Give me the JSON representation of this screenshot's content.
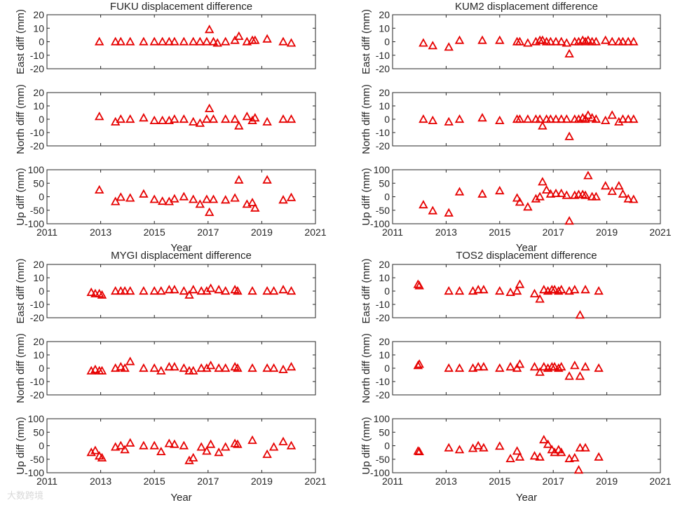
{
  "style": {
    "marker_color": "#e60000",
    "axis_color": "#262626",
    "text_color": "#262626"
  },
  "watermark": "大数跨境",
  "chart_data": [
    {
      "type": "scatter",
      "station": "FUKU",
      "title": "FUKU displacement difference",
      "xlabel": "Year",
      "xlim": [
        2011,
        2021
      ],
      "xticks": [
        2011,
        2013,
        2015,
        2017,
        2019,
        2021
      ],
      "panels": [
        {
          "ylabel": "East diff (mm)",
          "ylim": [
            -20,
            20
          ],
          "yticks": [
            -20,
            -10,
            0,
            10,
            20
          ],
          "x": [
            2012.95,
            2013.55,
            2013.75,
            2014.1,
            2014.6,
            2015.0,
            2015.3,
            2015.55,
            2015.75,
            2016.1,
            2016.45,
            2016.7,
            2016.95,
            2017.05,
            2017.2,
            2017.35,
            2017.65,
            2018.0,
            2018.15,
            2018.45,
            2018.65,
            2018.75,
            2019.2,
            2019.8,
            2020.1
          ],
          "y": [
            0,
            0,
            0,
            0,
            0,
            0,
            0,
            0,
            0,
            0,
            0,
            0,
            0,
            9,
            0,
            -1,
            0,
            1,
            4,
            0,
            1,
            1,
            2,
            0,
            -1
          ]
        },
        {
          "ylabel": "North diff (mm)",
          "ylim": [
            -20,
            20
          ],
          "yticks": [
            -20,
            -10,
            0,
            10,
            20
          ],
          "x": [
            2012.95,
            2013.55,
            2013.75,
            2014.1,
            2014.6,
            2015.0,
            2015.3,
            2015.55,
            2015.75,
            2016.1,
            2016.45,
            2016.7,
            2016.95,
            2017.05,
            2017.2,
            2017.65,
            2018.0,
            2018.15,
            2018.45,
            2018.65,
            2018.75,
            2019.2,
            2019.8,
            2020.1
          ],
          "y": [
            2,
            -2,
            0,
            0,
            1,
            -1,
            -1,
            -1,
            0,
            0,
            -2,
            -3,
            0,
            8,
            0,
            0,
            0,
            -5,
            2,
            -1,
            1,
            -2,
            0,
            0
          ]
        },
        {
          "ylabel": "Up diff (mm)",
          "ylim": [
            -100,
            100
          ],
          "yticks": [
            -100,
            -50,
            0,
            50,
            100
          ],
          "x": [
            2012.95,
            2013.55,
            2013.75,
            2014.1,
            2014.6,
            2015.0,
            2015.3,
            2015.55,
            2015.75,
            2016.1,
            2016.45,
            2016.7,
            2016.95,
            2017.05,
            2017.2,
            2017.65,
            2018.0,
            2018.15,
            2018.45,
            2018.65,
            2018.75,
            2019.2,
            2019.8,
            2020.1
          ],
          "y": [
            25,
            -18,
            -2,
            -5,
            10,
            -10,
            -17,
            -18,
            -8,
            0,
            -10,
            -28,
            -10,
            -58,
            -10,
            -12,
            -5,
            62,
            -28,
            -22,
            -42,
            62,
            -12,
            -3
          ]
        }
      ]
    },
    {
      "type": "scatter",
      "station": "KUM2",
      "title": "KUM2 displacement difference",
      "xlabel": "Year",
      "xlim": [
        2011,
        2021
      ],
      "xticks": [
        2011,
        2013,
        2015,
        2017,
        2019,
        2021
      ],
      "panels": [
        {
          "ylabel": "East diff (mm)",
          "ylim": [
            -20,
            20
          ],
          "yticks": [
            -20,
            -10,
            0,
            10,
            20
          ],
          "x": [
            2012.15,
            2012.5,
            2013.1,
            2013.5,
            2014.35,
            2015.0,
            2015.65,
            2015.75,
            2016.05,
            2016.35,
            2016.5,
            2016.6,
            2016.75,
            2016.9,
            2017.1,
            2017.3,
            2017.5,
            2017.6,
            2017.8,
            2017.95,
            2018.1,
            2018.2,
            2018.3,
            2018.45,
            2018.6,
            2018.95,
            2019.2,
            2019.45,
            2019.6,
            2019.8,
            2020.0
          ],
          "y": [
            -1,
            -3,
            -4,
            1,
            1,
            1,
            0,
            0,
            -1,
            0,
            1,
            1,
            0,
            0,
            0,
            0,
            -1,
            -9,
            0,
            0,
            1,
            0,
            1,
            0,
            0,
            1,
            0,
            0,
            0,
            0,
            0
          ]
        },
        {
          "ylabel": "North diff (mm)",
          "ylim": [
            -20,
            20
          ],
          "yticks": [
            -20,
            -10,
            0,
            10,
            20
          ],
          "x": [
            2012.15,
            2012.5,
            2013.1,
            2013.5,
            2014.35,
            2015.0,
            2015.65,
            2015.75,
            2016.05,
            2016.35,
            2016.5,
            2016.6,
            2016.75,
            2016.9,
            2017.1,
            2017.3,
            2017.5,
            2017.6,
            2017.8,
            2017.95,
            2018.1,
            2018.2,
            2018.3,
            2018.45,
            2018.6,
            2018.95,
            2019.2,
            2019.45,
            2019.6,
            2019.8,
            2020.0
          ],
          "y": [
            0,
            -1,
            -2,
            0,
            1,
            -1,
            0,
            0,
            0,
            0,
            0,
            -5,
            0,
            0,
            0,
            0,
            0,
            -13,
            0,
            0,
            1,
            0,
            3,
            1,
            0,
            -1,
            3,
            -2,
            0,
            0,
            0
          ]
        },
        {
          "ylabel": "Up diff (mm)",
          "ylim": [
            -100,
            100
          ],
          "yticks": [
            -100,
            -50,
            0,
            50,
            100
          ],
          "x": [
            2012.15,
            2012.5,
            2013.1,
            2013.5,
            2014.35,
            2015.0,
            2015.65,
            2015.75,
            2016.05,
            2016.35,
            2016.5,
            2016.6,
            2016.75,
            2016.9,
            2017.1,
            2017.3,
            2017.5,
            2017.6,
            2017.8,
            2017.95,
            2018.1,
            2018.2,
            2018.3,
            2018.45,
            2018.6,
            2018.95,
            2019.2,
            2019.45,
            2019.6,
            2019.8,
            2020.0
          ],
          "y": [
            -30,
            -52,
            -60,
            18,
            10,
            22,
            -5,
            -20,
            -38,
            -8,
            0,
            55,
            25,
            10,
            12,
            12,
            5,
            -90,
            5,
            8,
            8,
            5,
            78,
            0,
            0,
            40,
            20,
            40,
            10,
            -8,
            -10
          ]
        }
      ]
    },
    {
      "type": "scatter",
      "station": "MYGI",
      "title": "MYGI displacement difference",
      "xlabel": "Year",
      "xlim": [
        2011,
        2021
      ],
      "xticks": [
        2011,
        2013,
        2015,
        2017,
        2019,
        2021
      ],
      "panels": [
        {
          "ylabel": "East diff (mm)",
          "ylim": [
            -20,
            20
          ],
          "yticks": [
            -20,
            -10,
            0,
            10,
            20
          ],
          "x": [
            2012.65,
            2012.8,
            2012.95,
            2013.05,
            2013.55,
            2013.75,
            2013.9,
            2014.1,
            2014.6,
            2015.0,
            2015.25,
            2015.55,
            2015.75,
            2016.1,
            2016.3,
            2016.45,
            2016.75,
            2016.95,
            2017.1,
            2017.4,
            2017.65,
            2018.0,
            2018.1,
            2018.65,
            2019.2,
            2019.45,
            2019.8,
            2020.1
          ],
          "y": [
            -1,
            -2,
            -2,
            -3,
            0,
            0,
            0,
            0,
            0,
            0,
            0,
            1,
            1,
            0,
            -3,
            1,
            0,
            0,
            2,
            1,
            0,
            1,
            0,
            0,
            0,
            0,
            1,
            0
          ]
        },
        {
          "ylabel": "North diff (mm)",
          "ylim": [
            -20,
            20
          ],
          "yticks": [
            -20,
            -10,
            0,
            10,
            20
          ],
          "x": [
            2012.65,
            2012.8,
            2012.95,
            2013.05,
            2013.55,
            2013.75,
            2013.9,
            2014.1,
            2014.6,
            2015.0,
            2015.25,
            2015.55,
            2015.75,
            2016.1,
            2016.3,
            2016.45,
            2016.75,
            2016.95,
            2017.1,
            2017.4,
            2017.65,
            2018.0,
            2018.1,
            2018.65,
            2019.2,
            2019.45,
            2019.8,
            2020.1
          ],
          "y": [
            -2,
            -1,
            -2,
            -2,
            0,
            1,
            0,
            5,
            0,
            0,
            -2,
            1,
            1,
            0,
            -2,
            -2,
            0,
            0,
            2,
            0,
            0,
            1,
            0,
            0,
            0,
            0,
            -1,
            1
          ]
        },
        {
          "ylabel": "Up diff (mm)",
          "ylim": [
            -100,
            100
          ],
          "yticks": [
            -100,
            -50,
            0,
            50,
            100
          ],
          "x": [
            2012.65,
            2012.8,
            2012.95,
            2013.05,
            2013.55,
            2013.75,
            2013.9,
            2014.1,
            2014.6,
            2015.0,
            2015.25,
            2015.55,
            2015.75,
            2016.1,
            2016.3,
            2016.45,
            2016.75,
            2016.95,
            2017.1,
            2017.4,
            2017.65,
            2018.0,
            2018.1,
            2018.65,
            2019.2,
            2019.45,
            2019.8,
            2020.1
          ],
          "y": [
            -25,
            -18,
            -38,
            -45,
            -5,
            0,
            -15,
            10,
            0,
            0,
            -22,
            8,
            5,
            0,
            -55,
            -45,
            -5,
            -20,
            5,
            -25,
            -5,
            8,
            5,
            20,
            -32,
            -5,
            15,
            0
          ]
        }
      ]
    },
    {
      "type": "scatter",
      "station": "TOS2",
      "title": "TOS2 displacement difference",
      "xlabel": "Year",
      "xlim": [
        2011,
        2021
      ],
      "xticks": [
        2011,
        2013,
        2015,
        2017,
        2019,
        2021
      ],
      "panels": [
        {
          "ylabel": "East diff (mm)",
          "ylim": [
            -20,
            20
          ],
          "yticks": [
            -20,
            -10,
            0,
            10,
            20
          ],
          "x": [
            2011.95,
            2012.0,
            2013.1,
            2013.5,
            2014.0,
            2014.2,
            2014.4,
            2015.0,
            2015.4,
            2015.65,
            2015.75,
            2016.3,
            2016.5,
            2016.65,
            2016.8,
            2016.95,
            2017.05,
            2017.2,
            2017.3,
            2017.6,
            2017.8,
            2018.0,
            2018.2,
            2018.7
          ],
          "y": [
            5,
            4,
            0,
            0,
            0,
            1,
            1,
            0,
            -1,
            0,
            5,
            -2,
            -6,
            1,
            0,
            1,
            1,
            0,
            1,
            0,
            1,
            -18,
            1,
            0
          ]
        },
        {
          "ylabel": "North diff (mm)",
          "ylim": [
            -20,
            20
          ],
          "yticks": [
            -20,
            -10,
            0,
            10,
            20
          ],
          "x": [
            2011.95,
            2012.0,
            2013.1,
            2013.5,
            2014.0,
            2014.2,
            2014.4,
            2015.0,
            2015.4,
            2015.65,
            2015.75,
            2016.3,
            2016.5,
            2016.65,
            2016.8,
            2016.95,
            2017.05,
            2017.2,
            2017.3,
            2017.6,
            2017.8,
            2018.0,
            2018.2,
            2018.7
          ],
          "y": [
            2,
            3,
            0,
            0,
            0,
            1,
            1,
            0,
            1,
            0,
            3,
            1,
            -3,
            1,
            0,
            1,
            1,
            0,
            1,
            -6,
            2,
            -6,
            1,
            0
          ]
        },
        {
          "ylabel": "Up diff (mm)",
          "ylim": [
            -100,
            100
          ],
          "yticks": [
            -100,
            -50,
            0,
            50,
            100
          ],
          "x": [
            2011.95,
            2012.0,
            2013.1,
            2013.5,
            2014.0,
            2014.2,
            2014.4,
            2015.0,
            2015.4,
            2015.65,
            2015.75,
            2016.3,
            2016.5,
            2016.65,
            2016.8,
            2016.95,
            2017.05,
            2017.2,
            2017.3,
            2017.6,
            2017.8,
            2018.0,
            2018.2,
            2018.7,
            2017.95
          ],
          "y": [
            -20,
            -22,
            -8,
            -15,
            -10,
            0,
            -8,
            -2,
            -48,
            -20,
            -42,
            -38,
            -42,
            22,
            5,
            -15,
            -25,
            -15,
            -25,
            -48,
            -45,
            -8,
            -8,
            -42,
            -90
          ]
        }
      ]
    }
  ]
}
